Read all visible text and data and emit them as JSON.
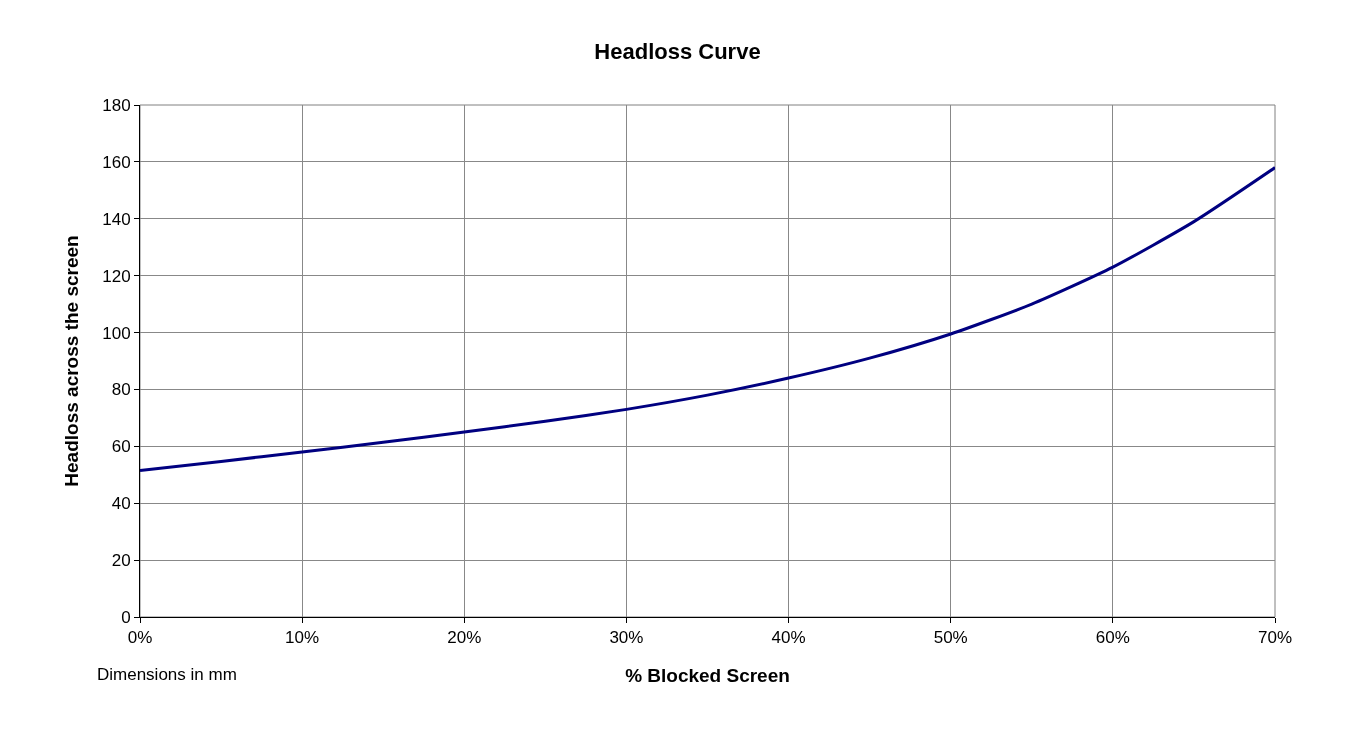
{
  "chart_data": {
    "type": "line",
    "title": "Headloss Curve",
    "xlabel": "% Blocked Screen",
    "ylabel": "Headloss across the screen",
    "x": [
      0,
      0.05,
      0.1,
      0.15,
      0.2,
      0.25,
      0.3,
      0.35,
      0.4,
      0.45,
      0.5,
      0.55,
      0.6,
      0.65,
      0.7
    ],
    "series": [
      {
        "color": "#000080",
        "values": [
          51.5,
          54.7,
          58,
          61.4,
          65,
          68.8,
          73,
          78,
          84,
          91,
          99.5,
          110,
          123,
          139,
          158
        ]
      }
    ],
    "xlim": [
      0,
      0.7
    ],
    "xticks": [
      {
        "value": 0,
        "label": "0%"
      },
      {
        "value": 0.1,
        "label": "10%"
      },
      {
        "value": 0.2,
        "label": "20%"
      },
      {
        "value": 0.3,
        "label": "30%"
      },
      {
        "value": 0.4,
        "label": "40%"
      },
      {
        "value": 0.5,
        "label": "50%"
      },
      {
        "value": 0.6,
        "label": "60%"
      },
      {
        "value": 0.7,
        "label": "70%"
      }
    ],
    "ylim": [
      0,
      180
    ],
    "yticks": [
      0,
      20,
      40,
      60,
      80,
      100,
      120,
      140,
      160,
      180
    ],
    "grid": true,
    "marker": "none",
    "line_style": "solid",
    "annotations": [
      "Dimensions in mm"
    ]
  }
}
